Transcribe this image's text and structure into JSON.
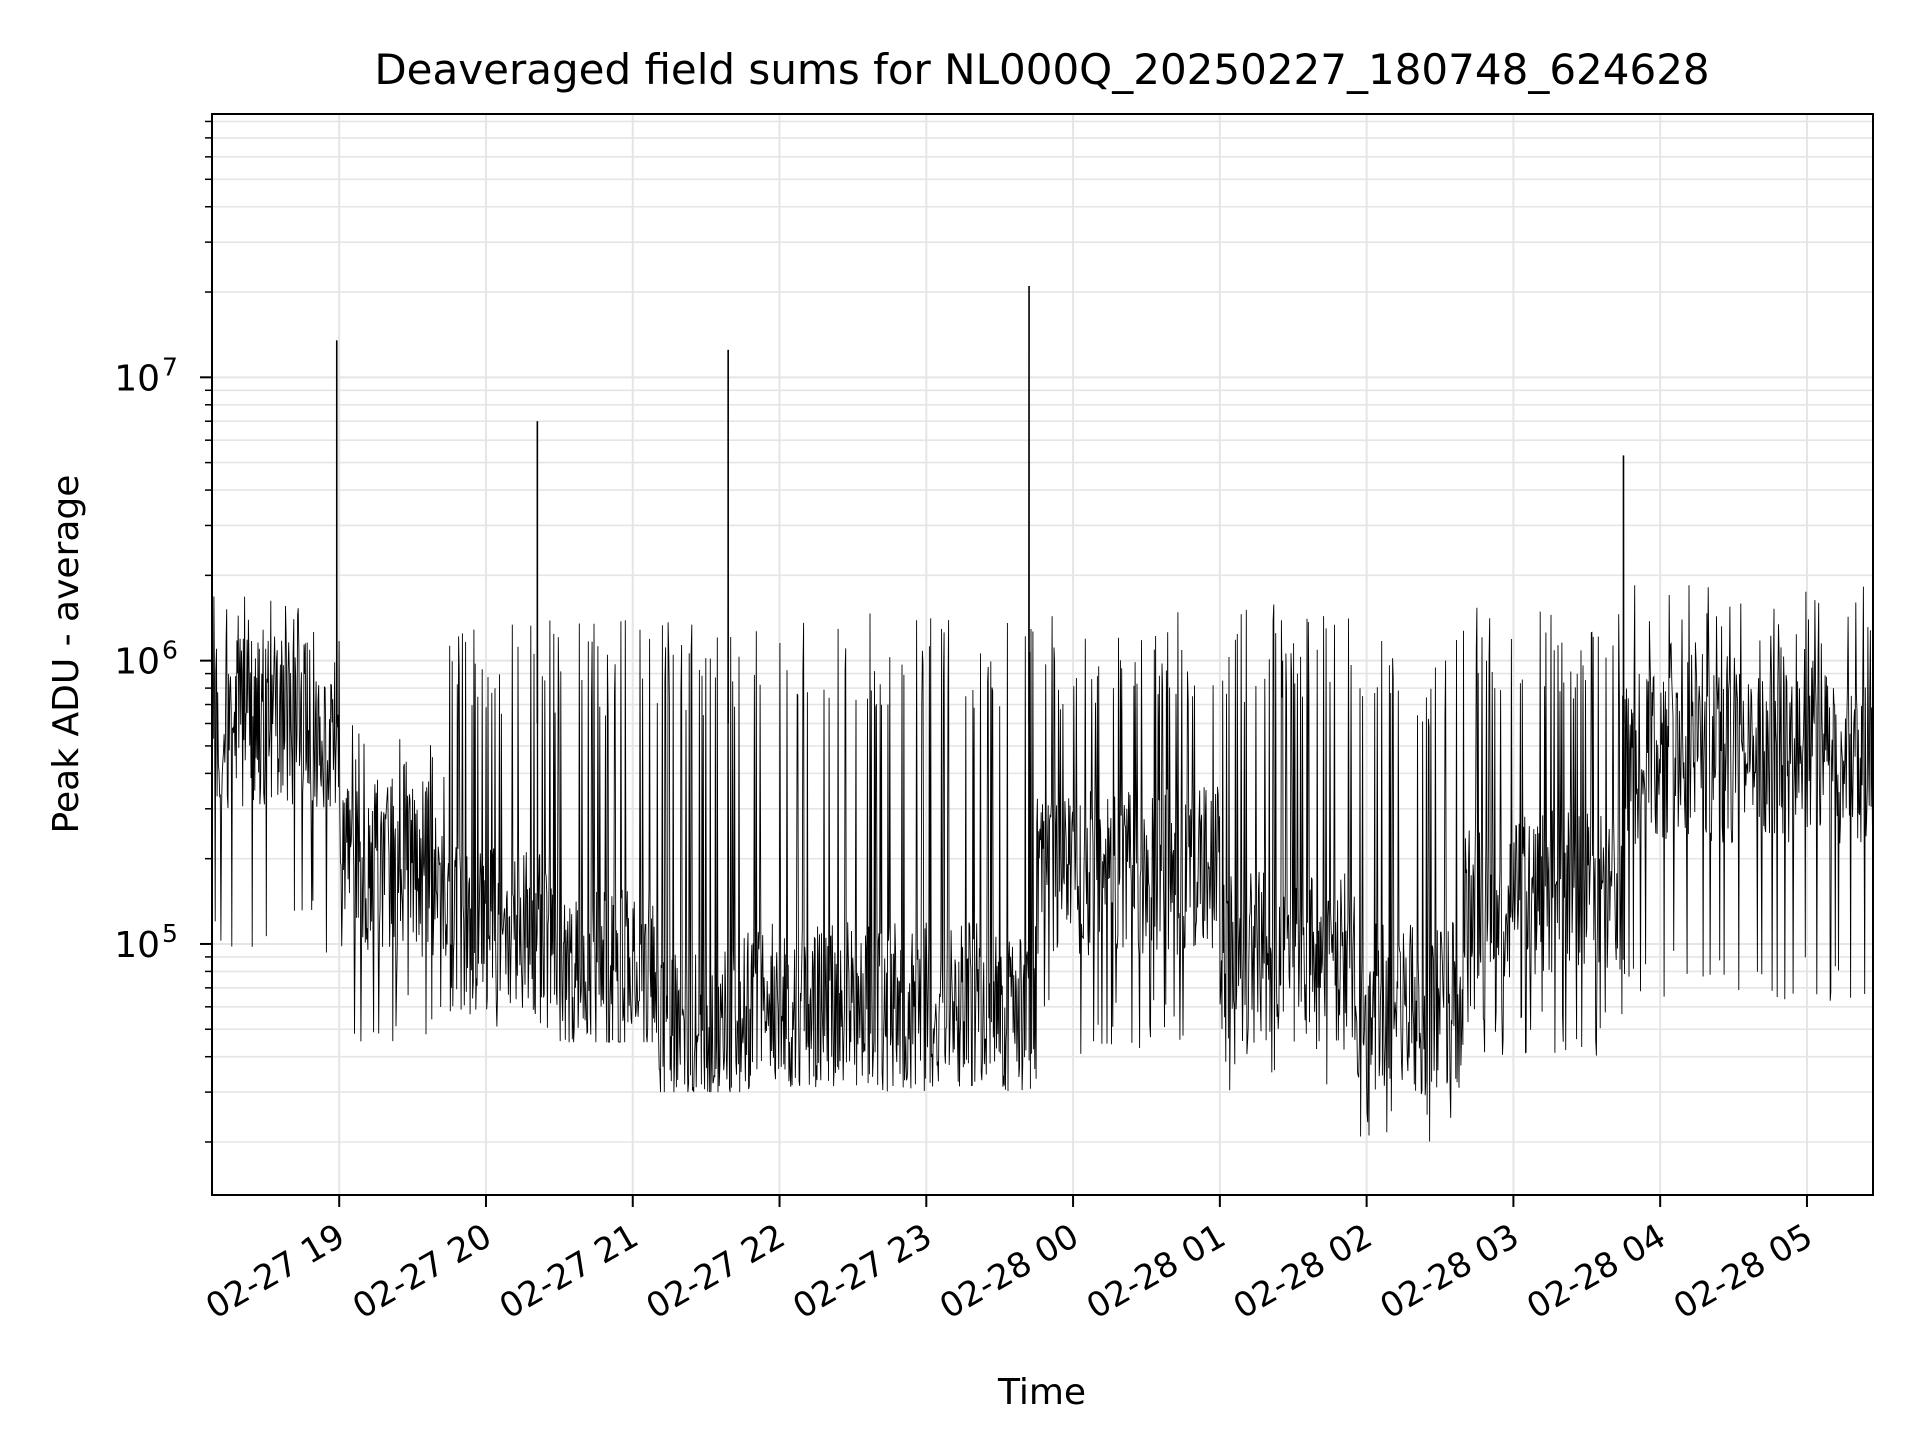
{
  "chart_data": {
    "type": "line",
    "title": "Deaveraged field sums for NL000Q_20250227_180748_624628",
    "xlabel": "Time",
    "ylabel": "Peak ADU - average",
    "x_scale": "time",
    "y_scale": "log",
    "xlim": [
      "2025-02-27 18:08",
      "2025-02-28 05:27"
    ],
    "ylim": [
      13000,
      85000000
    ],
    "grid": true,
    "x_ticks": [
      "02-27 19",
      "02-27 20",
      "02-27 21",
      "02-27 22",
      "02-27 23",
      "02-28 00",
      "02-28 01",
      "02-28 02",
      "02-28 03",
      "02-28 04",
      "02-28 05"
    ],
    "y_ticks": [
      {
        "value": 100000,
        "base": "10",
        "exp": "5"
      },
      {
        "value": 1000000,
        "base": "10",
        "exp": "6"
      },
      {
        "value": 10000000,
        "base": "10",
        "exp": "7"
      }
    ],
    "line_color": "#000000",
    "grid_color": "#e5e5e5",
    "regimes": [
      {
        "start": "2025-02-27 18:08",
        "end": "2025-02-27 19:00",
        "low": 90000,
        "high": 1800000,
        "median": 600000
      },
      {
        "start": "2025-02-27 19:00",
        "end": "2025-02-27 19:45",
        "low": 45000,
        "high": 600000,
        "median": 180000
      },
      {
        "start": "2025-02-27 19:45",
        "end": "2025-02-27 20:30",
        "low": 50000,
        "high": 1400000,
        "median": 110000
      },
      {
        "start": "2025-02-27 20:30",
        "end": "2025-02-27 21:10",
        "low": 45000,
        "high": 1400000,
        "median": 80000
      },
      {
        "start": "2025-02-27 21:10",
        "end": "2025-02-27 21:45",
        "low": 30000,
        "high": 1400000,
        "median": 50000
      },
      {
        "start": "2025-02-27 21:45",
        "end": "2025-02-27 23:45",
        "low": 30000,
        "high": 1500000,
        "median": 60000
      },
      {
        "start": "2025-02-27 23:45",
        "end": "2025-02-28 01:00",
        "low": 40000,
        "high": 1500000,
        "median": 180000
      },
      {
        "start": "2025-02-28 01:00",
        "end": "2025-02-28 01:55",
        "low": 30000,
        "high": 1600000,
        "median": 90000
      },
      {
        "start": "2025-02-28 01:55",
        "end": "2025-02-28 02:40",
        "low": 20000,
        "high": 1300000,
        "median": 60000
      },
      {
        "start": "2025-02-28 02:40",
        "end": "2025-02-28 03:45",
        "low": 40000,
        "high": 1600000,
        "median": 150000
      },
      {
        "start": "2025-02-28 03:45",
        "end": "2025-02-28 05:27",
        "low": 60000,
        "high": 1900000,
        "median": 450000
      }
    ],
    "spikes": [
      {
        "x": "2025-02-27 18:59",
        "y": 13500000
      },
      {
        "x": "2025-02-27 20:21",
        "y": 7000000
      },
      {
        "x": "2025-02-27 21:39",
        "y": 12500000
      },
      {
        "x": "2025-02-27 23:42",
        "y": 21000000
      },
      {
        "x": "2025-02-28 03:45",
        "y": 5300000
      }
    ]
  }
}
